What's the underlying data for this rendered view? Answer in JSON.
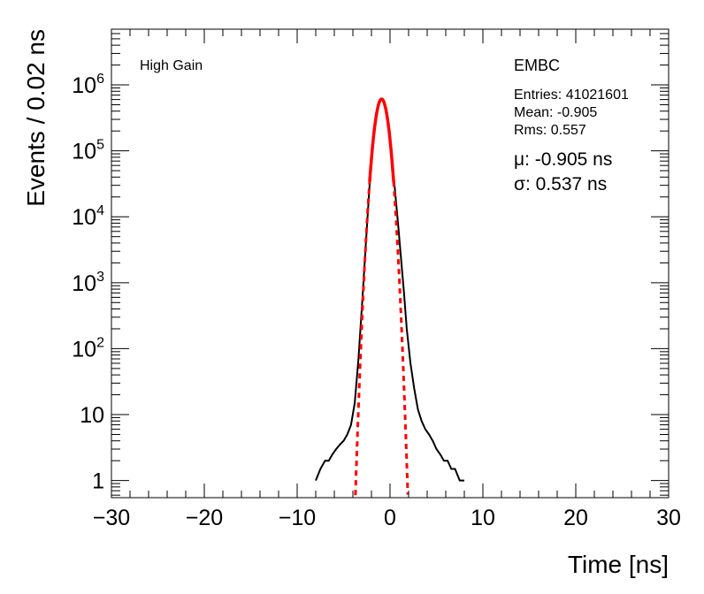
{
  "chart_data": {
    "type": "line",
    "xlabel": "Time [ns]",
    "ylabel": "Events / 0.02 ns",
    "xlim": [
      -30,
      30
    ],
    "ylim": [
      0.55,
      7000000
    ],
    "y_scale": "log",
    "grid": false,
    "x_ticks": [
      {
        "value": -30,
        "label": "−30"
      },
      {
        "value": -20,
        "label": "−20"
      },
      {
        "value": -10,
        "label": "−10"
      },
      {
        "value": 0,
        "label": "0"
      },
      {
        "value": 10,
        "label": "10"
      },
      {
        "value": 20,
        "label": "20"
      },
      {
        "value": 30,
        "label": "30"
      }
    ],
    "y_ticks": [
      {
        "value": 1,
        "label": "1",
        "exp": ""
      },
      {
        "value": 10,
        "label": "10",
        "exp": ""
      },
      {
        "value": 100,
        "label": "10",
        "exp": "2"
      },
      {
        "value": 1000,
        "label": "10",
        "exp": "3"
      },
      {
        "value": 10000,
        "label": "10",
        "exp": "4"
      },
      {
        "value": 100000,
        "label": "10",
        "exp": "5"
      },
      {
        "value": 1000000,
        "label": "10",
        "exp": "6"
      }
    ],
    "annotations": {
      "gain": "High Gain",
      "detector": "EMBC",
      "entries": "Entries: 41021601",
      "mean": "Mean: -0.905",
      "rms": "Rms: 0.557",
      "mu": "μ: -0.905 ns",
      "sigma": "σ: 0.537 ns"
    },
    "series": [
      {
        "kind": "histogram",
        "color": "#000000",
        "x": [
          -8.0,
          -7.5,
          -7.0,
          -6.6,
          -6.2,
          -5.8,
          -5.4,
          -5.0,
          -4.6,
          -4.2,
          -3.8,
          -3.4,
          -3.0,
          -2.6,
          -2.2,
          -1.8,
          -1.5,
          -1.2,
          -0.9,
          -0.6,
          -0.3,
          0.0,
          0.3,
          0.6,
          0.9,
          1.2,
          1.5,
          1.8,
          2.2,
          2.6,
          3.0,
          3.4,
          3.8,
          4.2,
          4.6,
          5.0,
          5.4,
          5.8,
          6.2,
          6.6,
          7.0,
          7.5,
          8.0
        ],
        "y": [
          1,
          1.5,
          2,
          2,
          2.5,
          3,
          3.5,
          4,
          5,
          7,
          15,
          70,
          500,
          4000,
          30000,
          150000,
          350000,
          550000,
          620000,
          520000,
          330000,
          170000,
          60000,
          20000,
          7000,
          2200,
          700,
          200,
          60,
          25,
          12,
          8,
          6,
          5,
          4,
          3,
          2.5,
          2,
          2,
          1.5,
          1.5,
          1,
          1
        ]
      },
      {
        "kind": "gaussian-fit",
        "color": "#ff0000",
        "mu": -0.905,
        "sigma": 0.537,
        "amplitude": 610000,
        "x_range": [
          -3.9,
          2.1
        ]
      }
    ]
  }
}
